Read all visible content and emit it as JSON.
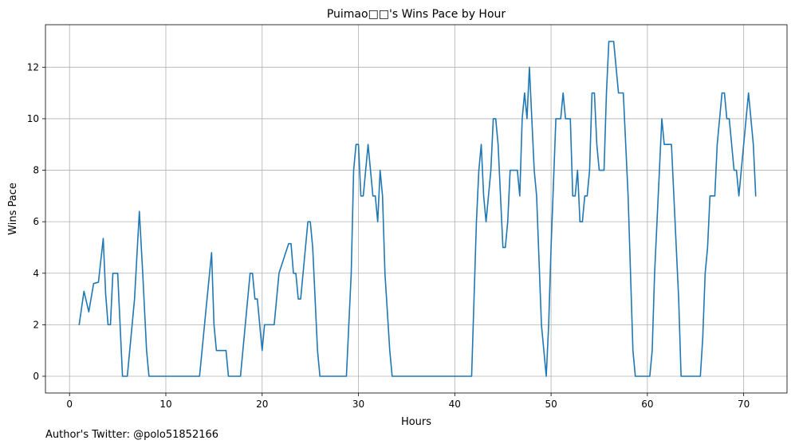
{
  "chart_data": {
    "type": "line",
    "title": "Puimao□□'s Wins Pace by Hour",
    "xlabel": "Hours",
    "ylabel": "Wins Pace",
    "xlim": [
      -2.5,
      74.5
    ],
    "ylim": [
      -0.65,
      13.65
    ],
    "x_ticks": [
      0,
      10,
      20,
      30,
      40,
      50,
      60,
      70
    ],
    "y_ticks": [
      0,
      2,
      4,
      6,
      8,
      10,
      12
    ],
    "grid": true,
    "legend": "none",
    "series": [
      {
        "color": "#1f77b4",
        "points": [
          [
            1.0,
            2.0
          ],
          [
            1.5,
            3.3
          ],
          [
            2.0,
            2.5
          ],
          [
            2.5,
            3.6
          ],
          [
            3.0,
            3.65
          ],
          [
            3.5,
            5.35
          ],
          [
            3.75,
            3.2
          ],
          [
            4.0,
            2.0
          ],
          [
            4.25,
            2.0
          ],
          [
            4.5,
            4.0
          ],
          [
            5.0,
            4.0
          ],
          [
            5.5,
            0.0
          ],
          [
            6.0,
            0.0
          ],
          [
            6.75,
            3.0
          ],
          [
            7.25,
            6.4
          ],
          [
            7.6,
            4.0
          ],
          [
            8.0,
            1.0
          ],
          [
            8.25,
            0.0
          ],
          [
            13.5,
            0.0
          ],
          [
            14.25,
            2.9
          ],
          [
            14.75,
            4.8
          ],
          [
            15.0,
            2.0
          ],
          [
            15.25,
            1.0
          ],
          [
            16.25,
            1.0
          ],
          [
            16.5,
            0.0
          ],
          [
            17.75,
            0.0
          ],
          [
            18.75,
            4.0
          ],
          [
            19.0,
            4.0
          ],
          [
            19.25,
            3.0
          ],
          [
            19.5,
            3.0
          ],
          [
            20.0,
            1.0
          ],
          [
            20.25,
            2.0
          ],
          [
            21.25,
            2.0
          ],
          [
            21.75,
            4.0
          ],
          [
            22.75,
            5.15
          ],
          [
            23.0,
            5.15
          ],
          [
            23.25,
            4.0
          ],
          [
            23.5,
            4.0
          ],
          [
            23.75,
            3.0
          ],
          [
            24.0,
            3.0
          ],
          [
            24.75,
            6.0
          ],
          [
            25.0,
            6.0
          ],
          [
            25.25,
            5.0
          ],
          [
            25.75,
            1.0
          ],
          [
            26.0,
            0.0
          ],
          [
            28.75,
            0.0
          ],
          [
            29.25,
            4.0
          ],
          [
            29.5,
            8.0
          ],
          [
            29.75,
            9.0
          ],
          [
            30.0,
            9.0
          ],
          [
            30.25,
            7.0
          ],
          [
            30.5,
            7.0
          ],
          [
            31.0,
            9.0
          ],
          [
            31.5,
            7.0
          ],
          [
            31.75,
            7.0
          ],
          [
            32.0,
            6.0
          ],
          [
            32.25,
            8.0
          ],
          [
            32.5,
            7.0
          ],
          [
            32.75,
            4.0
          ],
          [
            33.25,
            1.0
          ],
          [
            33.5,
            0.0
          ],
          [
            41.75,
            0.0
          ],
          [
            42.25,
            6.0
          ],
          [
            42.5,
            8.0
          ],
          [
            42.75,
            9.0
          ],
          [
            43.0,
            7.0
          ],
          [
            43.25,
            6.0
          ],
          [
            43.75,
            8.0
          ],
          [
            44.0,
            10.0
          ],
          [
            44.25,
            10.0
          ],
          [
            44.5,
            9.0
          ],
          [
            45.0,
            5.0
          ],
          [
            45.25,
            5.0
          ],
          [
            45.5,
            6.0
          ],
          [
            45.75,
            8.0
          ],
          [
            46.5,
            8.0
          ],
          [
            46.75,
            7.0
          ],
          [
            47.0,
            10.0
          ],
          [
            47.25,
            11.0
          ],
          [
            47.5,
            10.0
          ],
          [
            47.75,
            12.0
          ],
          [
            48.0,
            10.0
          ],
          [
            48.25,
            8.0
          ],
          [
            48.5,
            7.0
          ],
          [
            49.0,
            2.0
          ],
          [
            49.5,
            0.0
          ],
          [
            49.75,
            2.0
          ],
          [
            50.0,
            5.0
          ],
          [
            50.5,
            10.0
          ],
          [
            51.0,
            10.0
          ],
          [
            51.25,
            11.0
          ],
          [
            51.5,
            10.0
          ],
          [
            52.0,
            10.0
          ],
          [
            52.25,
            7.0
          ],
          [
            52.5,
            7.0
          ],
          [
            52.75,
            8.0
          ],
          [
            53.0,
            6.0
          ],
          [
            53.25,
            6.0
          ],
          [
            53.5,
            7.0
          ],
          [
            53.75,
            7.0
          ],
          [
            54.0,
            8.0
          ],
          [
            54.25,
            11.0
          ],
          [
            54.5,
            11.0
          ],
          [
            54.75,
            9.0
          ],
          [
            55.0,
            8.0
          ],
          [
            55.5,
            8.0
          ],
          [
            55.75,
            11.0
          ],
          [
            56.0,
            13.0
          ],
          [
            56.5,
            13.0
          ],
          [
            57.0,
            11.0
          ],
          [
            57.5,
            11.0
          ],
          [
            58.0,
            7.0
          ],
          [
            58.25,
            4.0
          ],
          [
            58.5,
            1.0
          ],
          [
            58.75,
            0.0
          ],
          [
            60.25,
            0.0
          ],
          [
            60.5,
            1.0
          ],
          [
            60.75,
            4.0
          ],
          [
            61.0,
            6.0
          ],
          [
            61.5,
            10.0
          ],
          [
            61.75,
            9.0
          ],
          [
            62.5,
            9.0
          ],
          [
            62.75,
            7.0
          ],
          [
            63.0,
            5.0
          ],
          [
            63.25,
            3.0
          ],
          [
            63.5,
            0.0
          ],
          [
            65.5,
            0.0
          ],
          [
            65.75,
            1.5
          ],
          [
            66.0,
            4.0
          ],
          [
            66.25,
            5.0
          ],
          [
            66.5,
            7.0
          ],
          [
            67.0,
            7.0
          ],
          [
            67.25,
            9.0
          ],
          [
            67.75,
            11.0
          ],
          [
            68.0,
            11.0
          ],
          [
            68.25,
            10.0
          ],
          [
            68.5,
            10.0
          ],
          [
            68.75,
            9.0
          ],
          [
            69.0,
            8.0
          ],
          [
            69.25,
            8.0
          ],
          [
            69.5,
            7.0
          ],
          [
            70.0,
            9.0
          ],
          [
            70.5,
            11.0
          ],
          [
            71.0,
            9.0
          ],
          [
            71.25,
            7.0
          ]
        ]
      }
    ]
  },
  "footnote": "Author's Twitter: @polo51852166"
}
